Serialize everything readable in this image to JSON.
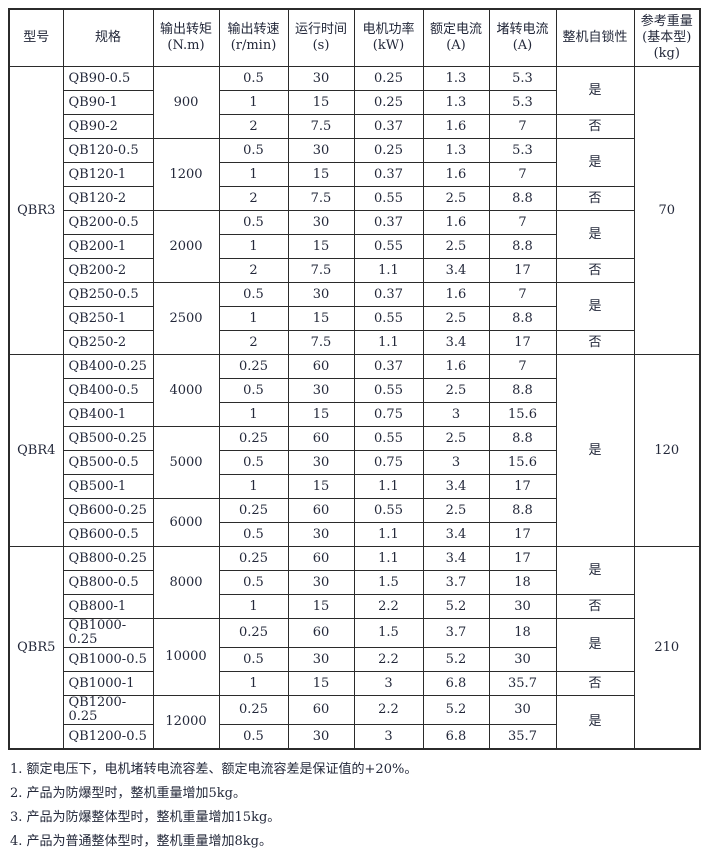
{
  "table": {
    "headers": [
      {
        "lines": "型号"
      },
      {
        "lines": "规格"
      },
      {
        "lines": "输出转矩\n(N.m)"
      },
      {
        "lines": "输出转速\n(r/min)"
      },
      {
        "lines": "运行时间\n(s)"
      },
      {
        "lines": "电机功率\n(kW)"
      },
      {
        "lines": "额定电流\n(A)"
      },
      {
        "lines": "堵转电流\n(A)"
      },
      {
        "lines": "整机自锁性"
      },
      {
        "lines": "参考重量\n(基本型)\n(kg)"
      }
    ],
    "rows": [
      [
        {
          "t": "QBR3",
          "rs": 12,
          "name": "model-cell"
        },
        {
          "t": "QB90-0.5",
          "left": true,
          "name": "spec-cell"
        },
        {
          "t": "900",
          "rs": 3
        },
        {
          "t": "0.5"
        },
        {
          "t": "30"
        },
        {
          "t": "0.25"
        },
        {
          "t": "1.3"
        },
        {
          "t": "5.3"
        },
        {
          "t": "是",
          "rs": 2
        },
        {
          "t": "70",
          "rs": 12,
          "name": "weight-cell"
        }
      ],
      [
        {
          "t": "QB90-1",
          "left": true,
          "name": "spec-cell"
        },
        {
          "t": "1"
        },
        {
          "t": "15"
        },
        {
          "t": "0.25"
        },
        {
          "t": "1.3"
        },
        {
          "t": "5.3"
        }
      ],
      [
        {
          "t": "QB90-2",
          "left": true,
          "name": "spec-cell"
        },
        {
          "t": "2"
        },
        {
          "t": "7.5"
        },
        {
          "t": "0.37"
        },
        {
          "t": "1.6"
        },
        {
          "t": "7"
        },
        {
          "t": "否"
        }
      ],
      [
        {
          "t": "QB120-0.5",
          "left": true,
          "name": "spec-cell"
        },
        {
          "t": "1200",
          "rs": 3
        },
        {
          "t": "0.5"
        },
        {
          "t": "30"
        },
        {
          "t": "0.25"
        },
        {
          "t": "1.3"
        },
        {
          "t": "5.3"
        },
        {
          "t": "是",
          "rs": 2
        }
      ],
      [
        {
          "t": "QB120-1",
          "left": true,
          "name": "spec-cell"
        },
        {
          "t": "1"
        },
        {
          "t": "15"
        },
        {
          "t": "0.37"
        },
        {
          "t": "1.6"
        },
        {
          "t": "7"
        }
      ],
      [
        {
          "t": "QB120-2",
          "left": true,
          "name": "spec-cell"
        },
        {
          "t": "2"
        },
        {
          "t": "7.5"
        },
        {
          "t": "0.55"
        },
        {
          "t": "2.5"
        },
        {
          "t": "8.8"
        },
        {
          "t": "否"
        }
      ],
      [
        {
          "t": "QB200-0.5",
          "left": true,
          "name": "spec-cell"
        },
        {
          "t": "2000",
          "rs": 3
        },
        {
          "t": "0.5"
        },
        {
          "t": "30"
        },
        {
          "t": "0.37"
        },
        {
          "t": "1.6"
        },
        {
          "t": "7"
        },
        {
          "t": "是",
          "rs": 2
        }
      ],
      [
        {
          "t": "QB200-1",
          "left": true,
          "name": "spec-cell"
        },
        {
          "t": "1"
        },
        {
          "t": "15"
        },
        {
          "t": "0.55"
        },
        {
          "t": "2.5"
        },
        {
          "t": "8.8"
        }
      ],
      [
        {
          "t": "QB200-2",
          "left": true,
          "name": "spec-cell"
        },
        {
          "t": "2"
        },
        {
          "t": "7.5"
        },
        {
          "t": "1.1"
        },
        {
          "t": "3.4"
        },
        {
          "t": "17"
        },
        {
          "t": "否"
        }
      ],
      [
        {
          "t": "QB250-0.5",
          "left": true,
          "name": "spec-cell"
        },
        {
          "t": "2500",
          "rs": 3
        },
        {
          "t": "0.5"
        },
        {
          "t": "30"
        },
        {
          "t": "0.37"
        },
        {
          "t": "1.6"
        },
        {
          "t": "7"
        },
        {
          "t": "是",
          "rs": 2
        }
      ],
      [
        {
          "t": "QB250-1",
          "left": true,
          "name": "spec-cell"
        },
        {
          "t": "1"
        },
        {
          "t": "15"
        },
        {
          "t": "0.55"
        },
        {
          "t": "2.5"
        },
        {
          "t": "8.8"
        }
      ],
      [
        {
          "t": "QB250-2",
          "left": true,
          "name": "spec-cell"
        },
        {
          "t": "2"
        },
        {
          "t": "7.5"
        },
        {
          "t": "1.1"
        },
        {
          "t": "3.4"
        },
        {
          "t": "17"
        },
        {
          "t": "否"
        }
      ],
      [
        {
          "t": "QBR4",
          "rs": 8,
          "name": "model-cell"
        },
        {
          "t": "QB400-0.25",
          "left": true,
          "name": "spec-cell"
        },
        {
          "t": "4000",
          "rs": 3
        },
        {
          "t": "0.25"
        },
        {
          "t": "60"
        },
        {
          "t": "0.37"
        },
        {
          "t": "1.6"
        },
        {
          "t": "7"
        },
        {
          "t": "是",
          "rs": 8
        },
        {
          "t": "120",
          "rs": 8,
          "name": "weight-cell"
        }
      ],
      [
        {
          "t": "QB400-0.5",
          "left": true,
          "name": "spec-cell"
        },
        {
          "t": "0.5"
        },
        {
          "t": "30"
        },
        {
          "t": "0.55"
        },
        {
          "t": "2.5"
        },
        {
          "t": "8.8"
        }
      ],
      [
        {
          "t": "QB400-1",
          "left": true,
          "name": "spec-cell"
        },
        {
          "t": "1"
        },
        {
          "t": "15"
        },
        {
          "t": "0.75"
        },
        {
          "t": "3"
        },
        {
          "t": "15.6"
        }
      ],
      [
        {
          "t": "QB500-0.25",
          "left": true,
          "name": "spec-cell"
        },
        {
          "t": "5000",
          "rs": 3
        },
        {
          "t": "0.25"
        },
        {
          "t": "60"
        },
        {
          "t": "0.55"
        },
        {
          "t": "2.5"
        },
        {
          "t": "8.8"
        }
      ],
      [
        {
          "t": "QB500-0.5",
          "left": true,
          "name": "spec-cell"
        },
        {
          "t": "0.5"
        },
        {
          "t": "30"
        },
        {
          "t": "0.75"
        },
        {
          "t": "3"
        },
        {
          "t": "15.6"
        }
      ],
      [
        {
          "t": "QB500-1",
          "left": true,
          "name": "spec-cell"
        },
        {
          "t": "1"
        },
        {
          "t": "15"
        },
        {
          "t": "1.1"
        },
        {
          "t": "3.4"
        },
        {
          "t": "17"
        }
      ],
      [
        {
          "t": "QB600-0.25",
          "left": true,
          "name": "spec-cell"
        },
        {
          "t": "6000",
          "rs": 2
        },
        {
          "t": "0.25"
        },
        {
          "t": "60"
        },
        {
          "t": "0.55"
        },
        {
          "t": "2.5"
        },
        {
          "t": "8.8"
        }
      ],
      [
        {
          "t": "QB600-0.5",
          "left": true,
          "name": "spec-cell"
        },
        {
          "t": "0.5"
        },
        {
          "t": "30"
        },
        {
          "t": "1.1"
        },
        {
          "t": "3.4"
        },
        {
          "t": "17"
        }
      ],
      [
        {
          "t": "QBR5",
          "rs": 8,
          "name": "model-cell"
        },
        {
          "t": "QB800-0.25",
          "left": true,
          "name": "spec-cell"
        },
        {
          "t": "8000",
          "rs": 3
        },
        {
          "t": "0.25"
        },
        {
          "t": "60"
        },
        {
          "t": "1.1"
        },
        {
          "t": "3.4"
        },
        {
          "t": "17"
        },
        {
          "t": "是",
          "rs": 2
        },
        {
          "t": "210",
          "rs": 8,
          "name": "weight-cell"
        }
      ],
      [
        {
          "t": "QB800-0.5",
          "left": true,
          "name": "spec-cell"
        },
        {
          "t": "0.5"
        },
        {
          "t": "30"
        },
        {
          "t": "1.5"
        },
        {
          "t": "3.7"
        },
        {
          "t": "18"
        }
      ],
      [
        {
          "t": "QB800-1",
          "left": true,
          "name": "spec-cell"
        },
        {
          "t": "1"
        },
        {
          "t": "15"
        },
        {
          "t": "2.2"
        },
        {
          "t": "5.2"
        },
        {
          "t": "30"
        },
        {
          "t": "否"
        }
      ],
      [
        {
          "t": "QB1000-0.25",
          "left": true,
          "name": "spec-cell"
        },
        {
          "t": "10000",
          "rs": 3
        },
        {
          "t": "0.25"
        },
        {
          "t": "60"
        },
        {
          "t": "1.5"
        },
        {
          "t": "3.7"
        },
        {
          "t": "18"
        },
        {
          "t": "是",
          "rs": 2
        }
      ],
      [
        {
          "t": "QB1000-0.5",
          "left": true,
          "name": "spec-cell"
        },
        {
          "t": "0.5"
        },
        {
          "t": "30"
        },
        {
          "t": "2.2"
        },
        {
          "t": "5.2"
        },
        {
          "t": "30"
        }
      ],
      [
        {
          "t": "QB1000-1",
          "left": true,
          "name": "spec-cell"
        },
        {
          "t": "1"
        },
        {
          "t": "15"
        },
        {
          "t": "3"
        },
        {
          "t": "6.8"
        },
        {
          "t": "35.7"
        },
        {
          "t": "否"
        }
      ],
      [
        {
          "t": "QB1200-0.25",
          "left": true,
          "name": "spec-cell"
        },
        {
          "t": "12000",
          "rs": 2
        },
        {
          "t": "0.25"
        },
        {
          "t": "60"
        },
        {
          "t": "2.2"
        },
        {
          "t": "5.2"
        },
        {
          "t": "30"
        },
        {
          "t": "是",
          "rs": 2
        }
      ],
      [
        {
          "t": "QB1200-0.5",
          "left": true,
          "name": "spec-cell"
        },
        {
          "t": "0.5"
        },
        {
          "t": "30"
        },
        {
          "t": "3"
        },
        {
          "t": "6.8"
        },
        {
          "t": "35.7"
        }
      ]
    ]
  },
  "notes": [
    "1. 额定电压下，电机堵转电流容差、额定电流容差是保证值的+20%。",
    "2. 产品为防爆型时，整机重量增加5kg。",
    "3. 产品为防爆整体型时，整机重量增加15kg。",
    "4. 产品为普通整体型时，整机重量增加8kg。"
  ],
  "colors": {
    "text": "#23283a",
    "border": "#2b2b2b",
    "background": "#ffffff"
  }
}
